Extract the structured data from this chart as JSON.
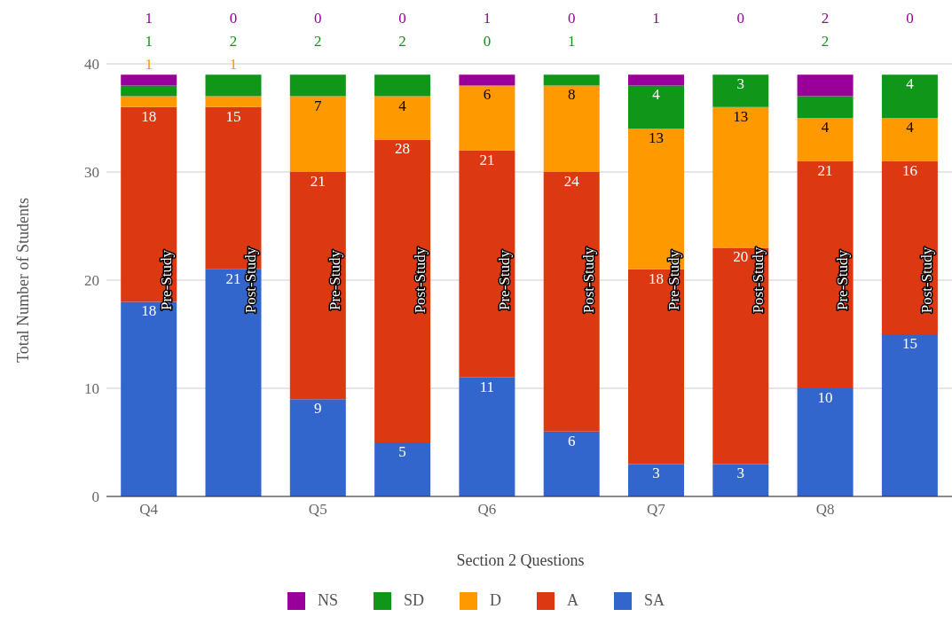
{
  "chart_data": {
    "type": "bar",
    "stacked": true,
    "xlabel": "Section 2 Questions",
    "ylabel": "Total Number of Students",
    "categories": [
      "Q4",
      null,
      "Q5",
      null,
      "Q6",
      null,
      "Q7",
      null,
      "Q8",
      null
    ],
    "series": [
      {
        "name": "SA",
        "color": "#3366cc",
        "values": [
          18,
          21,
          9,
          5,
          11,
          6,
          3,
          3,
          10,
          15
        ]
      },
      {
        "name": "A",
        "color": "#dc3912",
        "values": [
          18,
          15,
          21,
          28,
          21,
          24,
          18,
          20,
          21,
          16
        ]
      },
      {
        "name": "D",
        "color": "#ff9900",
        "values": [
          1,
          1,
          7,
          4,
          6,
          8,
          13,
          13,
          4,
          4
        ]
      },
      {
        "name": "SD",
        "color": "#109618",
        "values": [
          1,
          2,
          2,
          2,
          0,
          1,
          4,
          3,
          2,
          4
        ]
      },
      {
        "name": "NS",
        "color": "#990099",
        "values": [
          1,
          0,
          0,
          0,
          1,
          0,
          1,
          0,
          2,
          0
        ]
      }
    ],
    "annotations": [
      "Pre-Study",
      "Post-Study",
      "Pre-Study",
      "Post-Study",
      "Pre-Study",
      "Post-Study",
      "Pre-Study",
      "Post-Study",
      "Pre-Study",
      "Post-Study"
    ],
    "ylim": [
      0,
      40
    ],
    "yticks": [
      0,
      10,
      20,
      30,
      40
    ],
    "grid": "y",
    "legend": "bottom",
    "data_labels": true
  }
}
